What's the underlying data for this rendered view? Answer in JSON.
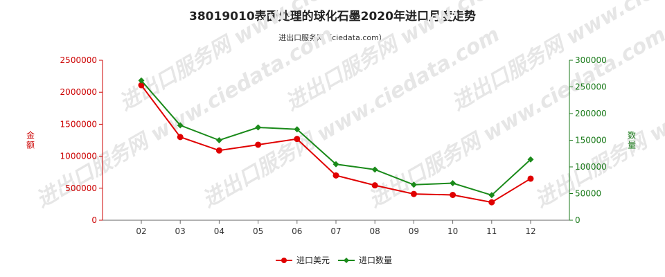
{
  "title": "38019010表面处理的球化石墨2020年进口月度走势",
  "subtitle": "进出口服务网（ciedata.com）",
  "watermark": "进出口服务网 www.ciedata.com",
  "chart_data": {
    "type": "line",
    "categories": [
      "02",
      "03",
      "04",
      "05",
      "06",
      "07",
      "08",
      "09",
      "10",
      "11",
      "12"
    ],
    "series": [
      {
        "name": "进口美元",
        "axis": "left",
        "color": "#e00000",
        "marker": "circle",
        "values": [
          2110000,
          1300000,
          1090000,
          1180000,
          1270000,
          700000,
          545000,
          410000,
          395000,
          280000,
          650000
        ]
      },
      {
        "name": "进口数量",
        "axis": "right",
        "color": "#1a8a1a",
        "marker": "diamond",
        "values": [
          262000,
          178000,
          150000,
          174000,
          170500,
          105000,
          95000,
          66500,
          69500,
          47000,
          114000
        ]
      }
    ],
    "y_left": {
      "label": "金额",
      "min": 0,
      "max": 2500000,
      "ticks": [
        "0",
        "500000",
        "1000000",
        "1500000",
        "2000000",
        "2500000"
      ]
    },
    "y_right": {
      "label": "数量",
      "min": 0,
      "max": 300000,
      "ticks": [
        "0",
        "50000",
        "100000",
        "150000",
        "200000",
        "250000",
        "300000"
      ]
    },
    "grid": false,
    "legend": "bottom-center"
  }
}
